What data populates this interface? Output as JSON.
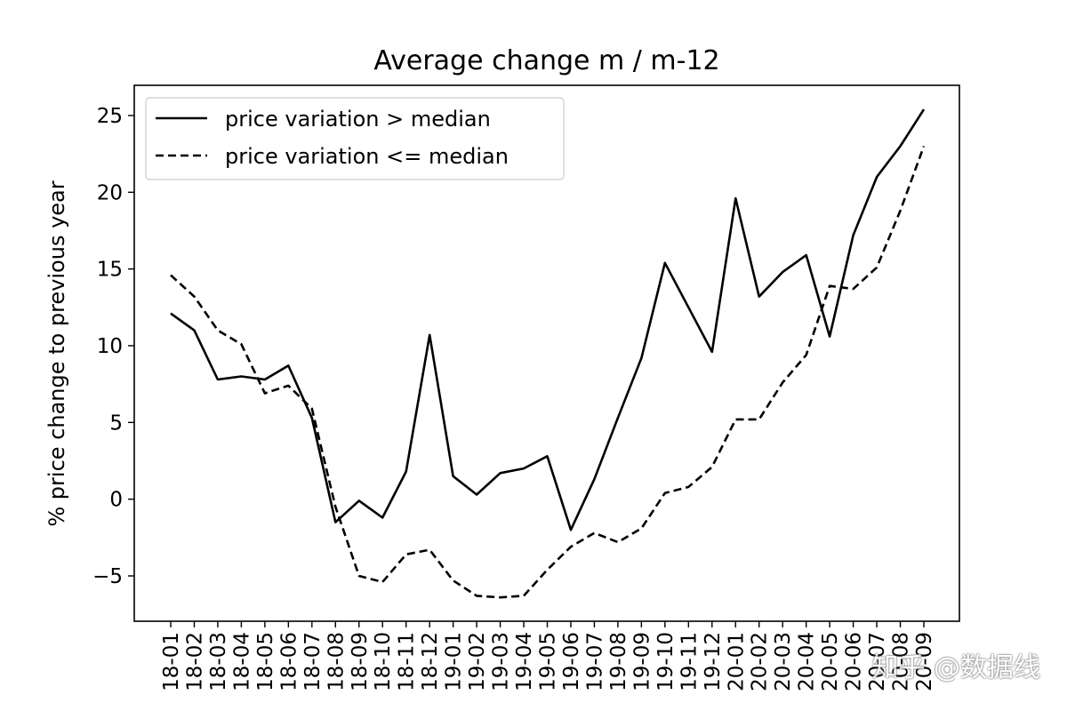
{
  "chart_data": {
    "type": "line",
    "title": "Average change m / m-12",
    "xlabel": "",
    "ylabel": "% price change to previous year",
    "ylim": [
      -8,
      27
    ],
    "yticks": [
      -5,
      0,
      5,
      10,
      15,
      20,
      25
    ],
    "grid": false,
    "legend_position": "top-left",
    "categories": [
      "18-01",
      "18-02",
      "18-03",
      "18-04",
      "18-05",
      "18-06",
      "18-07",
      "18-08",
      "18-09",
      "18-10",
      "18-11",
      "18-12",
      "19-01",
      "19-02",
      "19-03",
      "19-04",
      "19-05",
      "19-06",
      "19-07",
      "19-08",
      "19-09",
      "19-10",
      "19-11",
      "19-12",
      "20-01",
      "20-02",
      "20-03",
      "20-04",
      "20-05",
      "20-06",
      "20-07",
      "20-08",
      "20-09"
    ],
    "series": [
      {
        "name": "price variation > median",
        "style": "solid",
        "color": "#000000",
        "values": [
          12.1,
          11.0,
          7.8,
          8.0,
          7.8,
          8.7,
          5.3,
          -1.5,
          -0.1,
          -1.2,
          1.8,
          10.7,
          1.5,
          0.3,
          1.7,
          2.0,
          2.8,
          -2.0,
          1.3,
          5.3,
          9.2,
          15.4,
          12.5,
          9.6,
          19.6,
          13.2,
          14.8,
          15.9,
          10.6,
          17.2,
          21.0,
          23.0,
          25.4
        ]
      },
      {
        "name": "price variation <= median",
        "style": "dashed",
        "color": "#000000",
        "values": [
          14.6,
          13.2,
          11.0,
          10.1,
          6.9,
          7.4,
          5.9,
          -0.5,
          -5.0,
          -5.4,
          -3.6,
          -3.3,
          -5.3,
          -6.3,
          -6.4,
          -6.3,
          -4.6,
          -3.1,
          -2.2,
          -2.8,
          -1.9,
          0.4,
          0.8,
          2.1,
          5.2,
          5.2,
          7.6,
          9.4,
          13.9,
          13.7,
          15.1,
          18.8,
          23.0
        ]
      }
    ]
  },
  "watermark": "知乎 @数据线"
}
